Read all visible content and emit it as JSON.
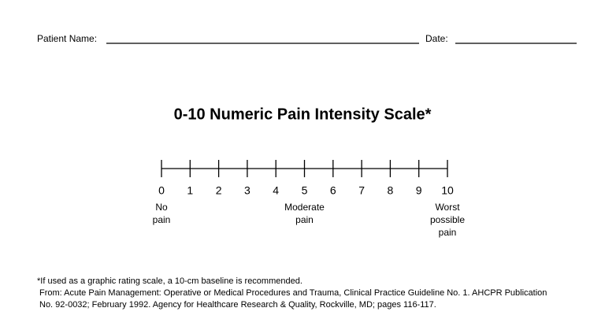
{
  "header": {
    "name_label": "Patient Name:",
    "date_label": "Date:"
  },
  "title": "0-10 Numeric Pain Intensity Scale*",
  "scale": {
    "numbers": [
      0,
      1,
      2,
      3,
      4,
      5,
      6,
      7,
      8,
      9,
      10
    ],
    "anchors": [
      {
        "at": 0,
        "lines": [
          "No",
          "pain"
        ]
      },
      {
        "at": 5,
        "lines": [
          "Moderate",
          "pain"
        ]
      },
      {
        "at": 10,
        "lines": [
          "Worst",
          "possible",
          "pain"
        ]
      }
    ]
  },
  "footnote": [
    "*If used as a graphic rating scale, a 10-cm baseline is recommended.",
    "From: Acute Pain Management: Operative or Medical Procedures and Trauma, Clinical Practice Guideline No. 1. AHCPR Publication",
    "No. 92-0032; February 1992.  Agency for Healthcare Research & Quality, Rockville, MD; pages 116-117."
  ]
}
